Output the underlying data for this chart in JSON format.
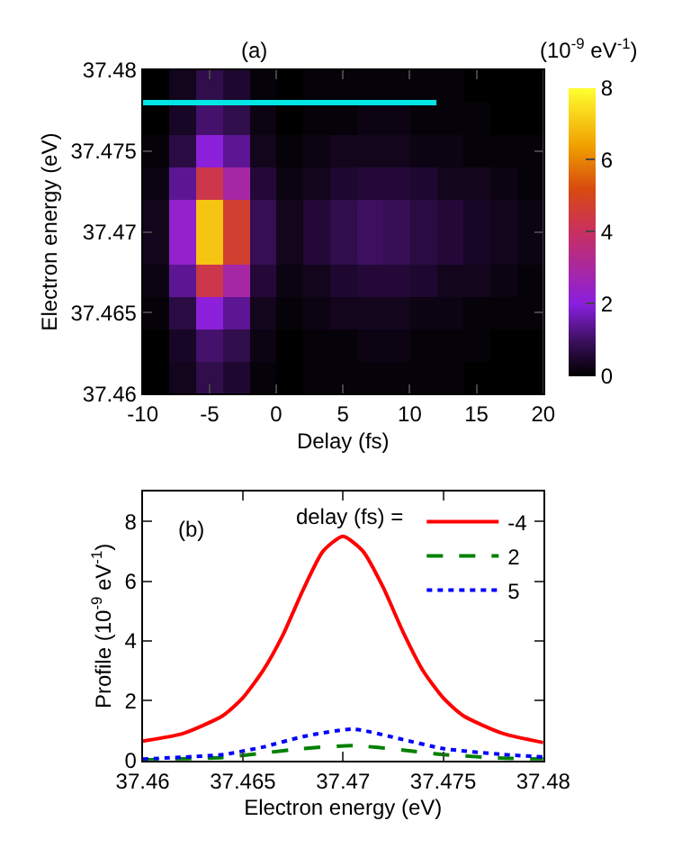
{
  "chart_data": [
    {
      "type": "heatmap",
      "title": "(a)",
      "xlabel": "Delay (fs)",
      "ylabel": "Electron energy (eV)",
      "clabel": "(10$^{-9}$ eV$^{-1}$)",
      "x": [
        -9,
        -7,
        -5,
        -3,
        -1,
        1,
        3,
        5,
        7,
        9,
        11,
        13,
        15,
        17,
        19
      ],
      "y": [
        37.479,
        37.477,
        37.475,
        37.473,
        37.471,
        37.469,
        37.467,
        37.465,
        37.463,
        37.461
      ],
      "cells": [
        [
          0.0,
          0.3,
          0.8,
          0.5,
          0.1,
          0.0,
          0.1,
          0.1,
          0.1,
          0.1,
          0.1,
          0.1,
          0.0,
          0.0,
          0.0
        ],
        [
          0.0,
          0.4,
          1.1,
          0.8,
          0.2,
          0.0,
          0.1,
          0.1,
          0.2,
          0.2,
          0.1,
          0.1,
          0.1,
          0.0,
          0.0
        ],
        [
          0.1,
          0.7,
          2.1,
          1.4,
          0.3,
          0.1,
          0.2,
          0.3,
          0.3,
          0.3,
          0.2,
          0.2,
          0.1,
          0.1,
          0.1
        ],
        [
          0.2,
          1.4,
          4.3,
          2.9,
          0.6,
          0.2,
          0.3,
          0.5,
          0.6,
          0.6,
          0.5,
          0.3,
          0.3,
          0.2,
          0.1
        ],
        [
          0.3,
          2.3,
          7.0,
          4.7,
          0.9,
          0.3,
          0.6,
          0.8,
          1.0,
          0.9,
          0.7,
          0.6,
          0.4,
          0.3,
          0.2
        ],
        [
          0.3,
          2.3,
          7.0,
          4.7,
          0.9,
          0.3,
          0.6,
          0.8,
          1.0,
          0.9,
          0.7,
          0.6,
          0.4,
          0.3,
          0.2
        ],
        [
          0.2,
          1.4,
          4.3,
          2.9,
          0.6,
          0.2,
          0.3,
          0.5,
          0.6,
          0.6,
          0.5,
          0.3,
          0.3,
          0.2,
          0.1
        ],
        [
          0.1,
          0.7,
          2.1,
          1.4,
          0.3,
          0.1,
          0.2,
          0.3,
          0.3,
          0.3,
          0.2,
          0.2,
          0.1,
          0.1,
          0.1
        ],
        [
          0.0,
          0.4,
          1.1,
          0.8,
          0.2,
          0.0,
          0.1,
          0.1,
          0.2,
          0.2,
          0.1,
          0.1,
          0.1,
          0.0,
          0.0
        ],
        [
          0.0,
          0.3,
          0.8,
          0.5,
          0.1,
          0.0,
          0.1,
          0.1,
          0.1,
          0.1,
          0.1,
          0.1,
          0.0,
          0.0,
          0.0
        ]
      ],
      "series": [
        {
          "type": "line",
          "x": [
            -10,
            12
          ],
          "values": [
            37.478,
            37.478
          ],
          "color": "#00e5e5"
        }
      ],
      "xlim": [
        -10,
        20
      ],
      "xticks": [
        -10,
        -5,
        0,
        5,
        10,
        15,
        20
      ],
      "ylim": [
        37.46,
        37.48
      ],
      "yticks": [
        37.46,
        37.465,
        37.47,
        37.475,
        37.48
      ],
      "clim": [
        0,
        8
      ],
      "cticks": [
        0,
        2,
        4,
        6,
        8
      ]
    },
    {
      "type": "line",
      "title": "(b)",
      "xlabel": "Electron energy (eV)",
      "ylabel": "Profile (10$^{-9}$ eV$^{-1}$)",
      "legend_title": "delay (fs) =",
      "legend": "top right",
      "series": [
        {
          "name": "-4",
          "color": "#ff0000",
          "line_style": "solid",
          "x": [
            37.46,
            37.462,
            37.464,
            37.465,
            37.466,
            37.467,
            37.468,
            37.469,
            37.47,
            37.471,
            37.472,
            37.473,
            37.474,
            37.475,
            37.476,
            37.478,
            37.48
          ],
          "values": [
            0.65,
            0.9,
            1.5,
            2.1,
            3.0,
            4.2,
            5.7,
            7.0,
            7.5,
            7.0,
            5.8,
            4.3,
            3.0,
            2.1,
            1.5,
            0.9,
            0.6
          ]
        },
        {
          "name": "2",
          "color": "#008000",
          "line_style": "dashed",
          "x": [
            37.46,
            37.464,
            37.466,
            37.468,
            37.4705,
            37.473,
            37.475,
            37.478,
            37.48
          ],
          "values": [
            0.02,
            0.1,
            0.25,
            0.4,
            0.5,
            0.35,
            0.2,
            0.08,
            0.05
          ]
        },
        {
          "name": "5",
          "color": "#0000ff",
          "line_style": "dotted",
          "x": [
            37.46,
            37.464,
            37.466,
            37.468,
            37.4705,
            37.473,
            37.475,
            37.478,
            37.48
          ],
          "values": [
            0.05,
            0.2,
            0.45,
            0.8,
            1.05,
            0.7,
            0.4,
            0.2,
            0.12
          ]
        }
      ],
      "xlim": [
        37.46,
        37.48
      ],
      "xticks": [
        37.46,
        37.465,
        37.47,
        37.475,
        37.48
      ],
      "ylim": [
        0,
        9
      ],
      "yticks": [
        0,
        2,
        4,
        6,
        8
      ]
    }
  ]
}
